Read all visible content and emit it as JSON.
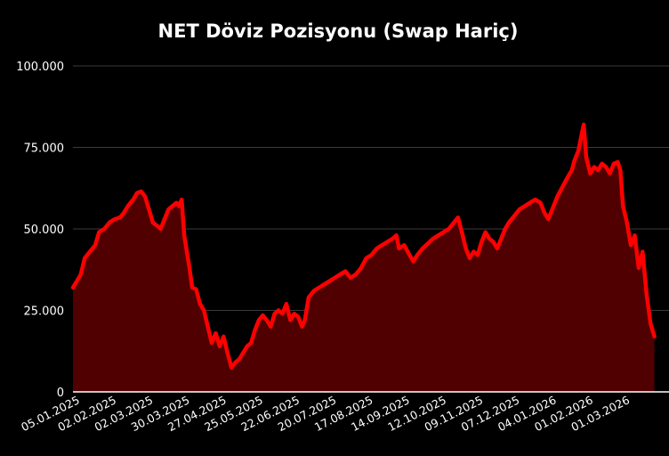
{
  "chart_data": {
    "type": "area",
    "title": "NET Döviz Pozisyonu (Swap Hariç)",
    "xlabel": "",
    "ylabel": "",
    "ylim": [
      0,
      100000
    ],
    "y_ticks": [
      0,
      25000,
      50000,
      75000,
      100000
    ],
    "y_tick_labels": [
      "0",
      "25.000",
      "50.000",
      "75.000",
      "100.000"
    ],
    "x_tick_labels": [
      "05.01.2025",
      "02.02.2025",
      "02.03.2025",
      "30.03.2025",
      "27.04.2025",
      "25.05.2025",
      "22.06.2025",
      "20.07.2025",
      "17.08.2025",
      "14.09.2025",
      "12.10.2025",
      "09.11.2025",
      "07.12.2025",
      "04.01.2026",
      "01.02.2026",
      "01.03.2026"
    ],
    "x_range": [
      "2025-01-02",
      "2026-03-25"
    ],
    "grid": true,
    "legend": "none",
    "colors": {
      "line": "#ff0000",
      "fill": "#500000",
      "background": "#000000",
      "grid": "#3a3a3a",
      "text": "#ffffff"
    },
    "series": [
      {
        "points": [
          [
            "2025-01-02",
            32000
          ],
          [
            "2025-01-05",
            34000
          ],
          [
            "2025-01-08",
            36000
          ],
          [
            "2025-01-11",
            41000
          ],
          [
            "2025-01-15",
            43000
          ],
          [
            "2025-01-19",
            45000
          ],
          [
            "2025-01-22",
            49000
          ],
          [
            "2025-01-26",
            50000
          ],
          [
            "2025-01-30",
            52000
          ],
          [
            "2025-02-03",
            53000
          ],
          [
            "2025-02-07",
            53500
          ],
          [
            "2025-02-10",
            55000
          ],
          [
            "2025-02-13",
            57000
          ],
          [
            "2025-02-17",
            59000
          ],
          [
            "2025-02-20",
            61000
          ],
          [
            "2025-02-23",
            61500
          ],
          [
            "2025-02-26",
            60000
          ],
          [
            "2025-03-01",
            56000
          ],
          [
            "2025-03-04",
            52000
          ],
          [
            "2025-03-07",
            51000
          ],
          [
            "2025-03-10",
            50000
          ],
          [
            "2025-03-13",
            53000
          ],
          [
            "2025-03-16",
            56000
          ],
          [
            "2025-03-19",
            57000
          ],
          [
            "2025-03-22",
            58000
          ],
          [
            "2025-03-24",
            57000
          ],
          [
            "2025-03-26",
            59000
          ],
          [
            "2025-03-28",
            48000
          ],
          [
            "2025-04-01",
            38000
          ],
          [
            "2025-04-03",
            32000
          ],
          [
            "2025-04-06",
            31500
          ],
          [
            "2025-04-09",
            27000
          ],
          [
            "2025-04-12",
            25000
          ],
          [
            "2025-04-15",
            20000
          ],
          [
            "2025-04-18",
            15000
          ],
          [
            "2025-04-21",
            18000
          ],
          [
            "2025-04-24",
            14000
          ],
          [
            "2025-04-27",
            17000
          ],
          [
            "2025-04-30",
            12000
          ],
          [
            "2025-05-03",
            7500
          ],
          [
            "2025-05-06",
            9000
          ],
          [
            "2025-05-09",
            10000
          ],
          [
            "2025-05-12",
            12000
          ],
          [
            "2025-05-15",
            14000
          ],
          [
            "2025-05-18",
            15000
          ],
          [
            "2025-05-21",
            19000
          ],
          [
            "2025-05-24",
            22000
          ],
          [
            "2025-05-27",
            23500
          ],
          [
            "2025-05-30",
            22000
          ],
          [
            "2025-06-02",
            20000
          ],
          [
            "2025-06-05",
            24000
          ],
          [
            "2025-06-08",
            25000
          ],
          [
            "2025-06-11",
            24000
          ],
          [
            "2025-06-14",
            27000
          ],
          [
            "2025-06-17",
            22000
          ],
          [
            "2025-06-20",
            24000
          ],
          [
            "2025-06-23",
            23000
          ],
          [
            "2025-06-26",
            20000
          ],
          [
            "2025-06-28",
            22000
          ],
          [
            "2025-07-01",
            29000
          ],
          [
            "2025-07-05",
            31000
          ],
          [
            "2025-07-09",
            32000
          ],
          [
            "2025-07-13",
            33000
          ],
          [
            "2025-07-17",
            34000
          ],
          [
            "2025-07-21",
            35000
          ],
          [
            "2025-07-25",
            36000
          ],
          [
            "2025-07-29",
            37000
          ],
          [
            "2025-08-02",
            35000
          ],
          [
            "2025-08-06",
            36000
          ],
          [
            "2025-08-10",
            38000
          ],
          [
            "2025-08-14",
            41000
          ],
          [
            "2025-08-18",
            42000
          ],
          [
            "2025-08-22",
            44000
          ],
          [
            "2025-08-26",
            45000
          ],
          [
            "2025-08-30",
            46000
          ],
          [
            "2025-09-03",
            47000
          ],
          [
            "2025-09-06",
            48000
          ],
          [
            "2025-09-08",
            44000
          ],
          [
            "2025-09-12",
            45000
          ],
          [
            "2025-09-16",
            42000
          ],
          [
            "2025-09-19",
            40000
          ],
          [
            "2025-09-22",
            42000
          ],
          [
            "2025-09-26",
            44000
          ],
          [
            "2025-09-30",
            45500
          ],
          [
            "2025-10-04",
            47000
          ],
          [
            "2025-10-08",
            48000
          ],
          [
            "2025-10-12",
            49000
          ],
          [
            "2025-10-16",
            50000
          ],
          [
            "2025-10-20",
            52000
          ],
          [
            "2025-10-23",
            53500
          ],
          [
            "2025-10-26",
            49000
          ],
          [
            "2025-10-29",
            44000
          ],
          [
            "2025-11-01",
            41000
          ],
          [
            "2025-11-04",
            43000
          ],
          [
            "2025-11-07",
            42000
          ],
          [
            "2025-11-10",
            46000
          ],
          [
            "2025-11-13",
            49000
          ],
          [
            "2025-11-16",
            47000
          ],
          [
            "2025-11-19",
            46000
          ],
          [
            "2025-11-22",
            44000
          ],
          [
            "2025-11-25",
            47000
          ],
          [
            "2025-11-28",
            50000
          ],
          [
            "2025-12-01",
            52000
          ],
          [
            "2025-12-05",
            54000
          ],
          [
            "2025-12-09",
            56000
          ],
          [
            "2025-12-13",
            57000
          ],
          [
            "2025-12-17",
            58000
          ],
          [
            "2025-12-21",
            59000
          ],
          [
            "2025-12-25",
            58000
          ],
          [
            "2025-12-28",
            55000
          ],
          [
            "2025-12-31",
            53000
          ],
          [
            "2026-01-03",
            56000
          ],
          [
            "2026-01-07",
            60000
          ],
          [
            "2026-01-11",
            63000
          ],
          [
            "2026-01-15",
            66000
          ],
          [
            "2026-01-18",
            68000
          ],
          [
            "2026-01-20",
            71000
          ],
          [
            "2026-01-23",
            74000
          ],
          [
            "2026-01-25",
            78000
          ],
          [
            "2026-01-27",
            82000
          ],
          [
            "2026-01-29",
            72000
          ],
          [
            "2026-02-01",
            67000
          ],
          [
            "2026-02-04",
            69000
          ],
          [
            "2026-02-07",
            68000
          ],
          [
            "2026-02-10",
            70000
          ],
          [
            "2026-02-13",
            69000
          ],
          [
            "2026-02-16",
            67000
          ],
          [
            "2026-02-19",
            70000
          ],
          [
            "2026-02-22",
            70500
          ],
          [
            "2026-02-24",
            68000
          ],
          [
            "2026-02-26",
            57000
          ],
          [
            "2026-03-01",
            52000
          ],
          [
            "2026-03-04",
            45000
          ],
          [
            "2026-03-07",
            48000
          ],
          [
            "2026-03-10",
            38000
          ],
          [
            "2026-03-13",
            43000
          ],
          [
            "2026-03-16",
            30000
          ],
          [
            "2026-03-19",
            21000
          ],
          [
            "2026-03-22",
            17000
          ]
        ]
      }
    ]
  }
}
